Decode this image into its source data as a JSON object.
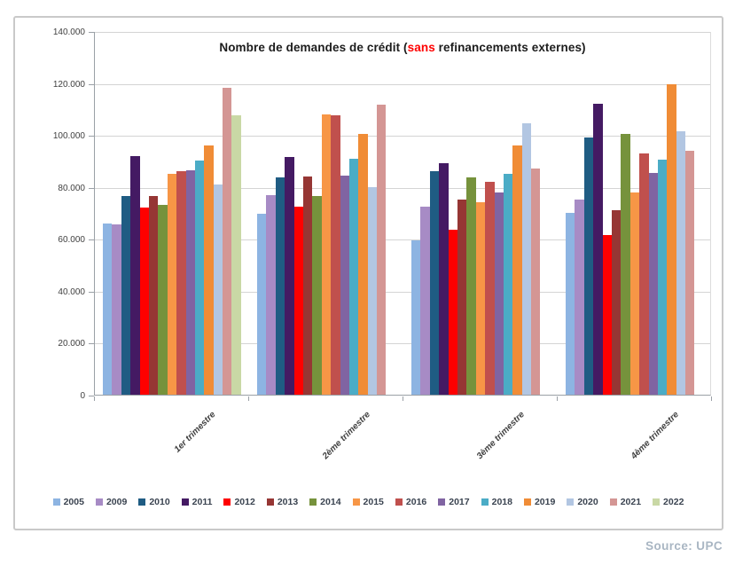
{
  "page": {
    "source_note": "Source: UPC"
  },
  "chart_data": {
    "type": "bar",
    "title": {
      "prefix": "Nombre de demandes de crédit (",
      "highlight": "sans",
      "suffix": " refinancements externes)",
      "highlight_color": "#FF0000"
    },
    "categories": [
      "1er trimestre",
      "2ème trimestre",
      "3ème trimestre",
      "4ème trimestre"
    ],
    "xlabel": "",
    "ylabel": "",
    "grid": true,
    "legend_position": "bottom",
    "y_axis": {
      "min": 0,
      "max": 140000,
      "step": 20000,
      "tick_labels": [
        "0",
        "20.000",
        "40.000",
        "60.000",
        "80.000",
        "100.000",
        "120.000",
        "140.000"
      ]
    },
    "series": [
      {
        "name": "2005",
        "color": "#8DB4E2",
        "values": [
          66000,
          69500,
          59500,
          70000
        ]
      },
      {
        "name": "2009",
        "color": "#A78BC5",
        "values": [
          65500,
          77000,
          72500,
          75000
        ]
      },
      {
        "name": "2010",
        "color": "#1F5C83",
        "values": [
          76500,
          83500,
          86000,
          99000
        ]
      },
      {
        "name": "2011",
        "color": "#441A63",
        "values": [
          92000,
          91500,
          89000,
          112000
        ]
      },
      {
        "name": "2012",
        "color": "#FE0000",
        "values": [
          72000,
          72500,
          63500,
          61500
        ]
      },
      {
        "name": "2013",
        "color": "#963634",
        "values": [
          76500,
          84000,
          75000,
          71000
        ]
      },
      {
        "name": "2014",
        "color": "#76923C",
        "values": [
          73000,
          76500,
          83500,
          100500
        ]
      },
      {
        "name": "2015",
        "color": "#F79646",
        "values": [
          85000,
          108000,
          74000,
          78000
        ]
      },
      {
        "name": "2016",
        "color": "#C0504D",
        "values": [
          86000,
          107500,
          82000,
          93000
        ]
      },
      {
        "name": "2017",
        "color": "#8064A2",
        "values": [
          86500,
          84500,
          78000,
          85500
        ]
      },
      {
        "name": "2018",
        "color": "#4BACC6",
        "values": [
          90000,
          91000,
          85000,
          90500
        ]
      },
      {
        "name": "2019",
        "color": "#F08C36",
        "values": [
          96000,
          100500,
          96000,
          119500
        ]
      },
      {
        "name": "2020",
        "color": "#B2C6E2",
        "values": [
          81000,
          80000,
          104500,
          101500
        ]
      },
      {
        "name": "2021",
        "color": "#D49694",
        "values": [
          118000,
          111500,
          87000,
          94000
        ]
      },
      {
        "name": "2022",
        "color": "#C9D8A5",
        "values": [
          107500,
          null,
          null,
          null
        ]
      }
    ]
  }
}
